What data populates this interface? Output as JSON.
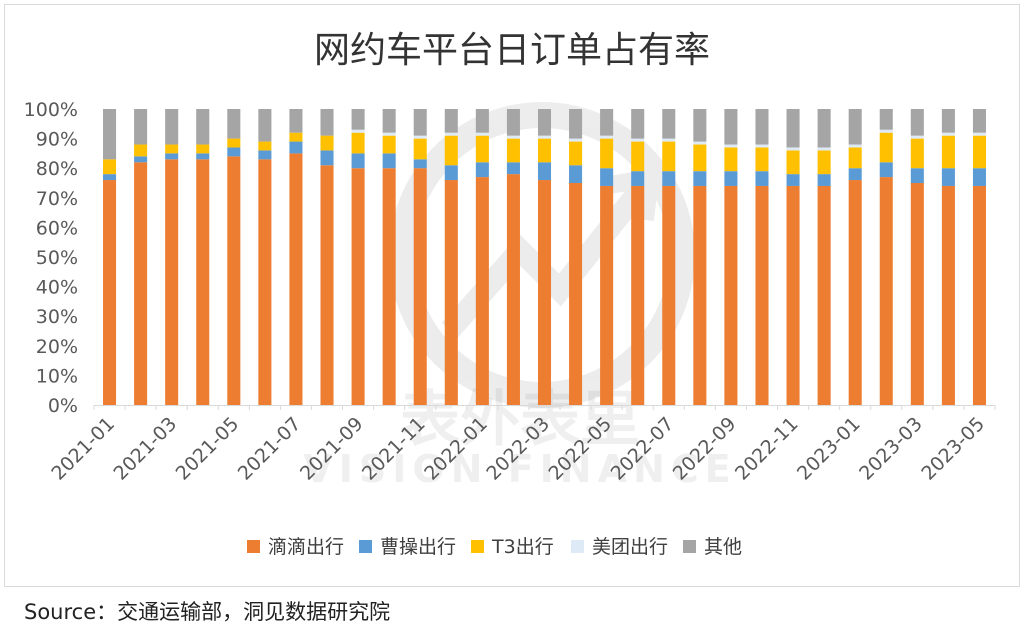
{
  "chart_data": {
    "type": "bar",
    "stacked": true,
    "title": "网约车平台日订单占有率",
    "xlabel": "",
    "ylabel": "",
    "ylim": [
      0,
      100
    ],
    "y_ticks": [
      "0%",
      "10%",
      "20%",
      "30%",
      "40%",
      "50%",
      "60%",
      "70%",
      "80%",
      "90%",
      "100%"
    ],
    "categories": [
      "2021-01",
      "2021-02",
      "2021-03",
      "2021-04",
      "2021-05",
      "2021-06",
      "2021-07",
      "2021-08",
      "2021-09",
      "2021-10",
      "2021-11",
      "2021-12",
      "2022-01",
      "2022-02",
      "2022-03",
      "2022-04",
      "2022-05",
      "2022-06",
      "2022-07",
      "2022-08",
      "2022-09",
      "2022-10",
      "2022-11",
      "2022-12",
      "2023-01",
      "2023-02",
      "2023-03",
      "2023-04",
      "2023-05"
    ],
    "x_tick_labels": [
      "2021-01",
      "2021-03",
      "2021-05",
      "2021-07",
      "2021-09",
      "2021-11",
      "2022-01",
      "2022-03",
      "2022-05",
      "2022-07",
      "2022-09",
      "2022-11",
      "2023-01",
      "2023-03",
      "2023-05"
    ],
    "series": [
      {
        "name": "滴滴出行",
        "color": "#ED7D31",
        "values": [
          76,
          82,
          83,
          83,
          84,
          83,
          85,
          81,
          80,
          80,
          80,
          76,
          77,
          78,
          76,
          75,
          74,
          74,
          74,
          74,
          74,
          74,
          74,
          74,
          76,
          77,
          75,
          74,
          74
        ]
      },
      {
        "name": "曹操出行",
        "color": "#5B9BD5",
        "values": [
          2,
          2,
          2,
          2,
          3,
          3,
          4,
          5,
          5,
          5,
          3,
          5,
          5,
          4,
          6,
          6,
          6,
          5,
          5,
          5,
          5,
          5,
          4,
          4,
          4,
          5,
          5,
          6,
          6
        ]
      },
      {
        "name": "T3出行",
        "color": "#FFC000",
        "values": [
          5,
          4,
          3,
          3,
          3,
          3,
          3,
          5,
          7,
          6,
          7,
          10,
          9,
          8,
          8,
          8,
          10,
          10,
          10,
          9,
          8,
          8,
          8,
          8,
          7,
          10,
          10,
          11,
          11
        ]
      },
      {
        "name": "美团出行",
        "color": "#DEEBF7",
        "values": [
          0,
          0,
          0,
          0,
          0,
          0,
          0,
          0,
          1,
          1,
          1,
          1,
          1,
          1,
          1,
          1,
          1,
          1,
          1,
          1,
          1,
          1,
          1,
          1,
          1,
          1,
          1,
          1,
          1
        ]
      },
      {
        "name": "其他",
        "color": "#A5A5A5",
        "values": [
          17,
          12,
          12,
          12,
          10,
          11,
          8,
          9,
          7,
          8,
          9,
          8,
          8,
          9,
          9,
          10,
          9,
          10,
          10,
          11,
          12,
          12,
          13,
          13,
          12,
          7,
          9,
          8,
          8
        ]
      }
    ],
    "legend_position": "bottom",
    "grid": false
  },
  "watermark": {
    "cn": "表外表里",
    "en": "VISION FINANCE"
  },
  "source_note": "Source：交通运输部，洞见数据研究院"
}
